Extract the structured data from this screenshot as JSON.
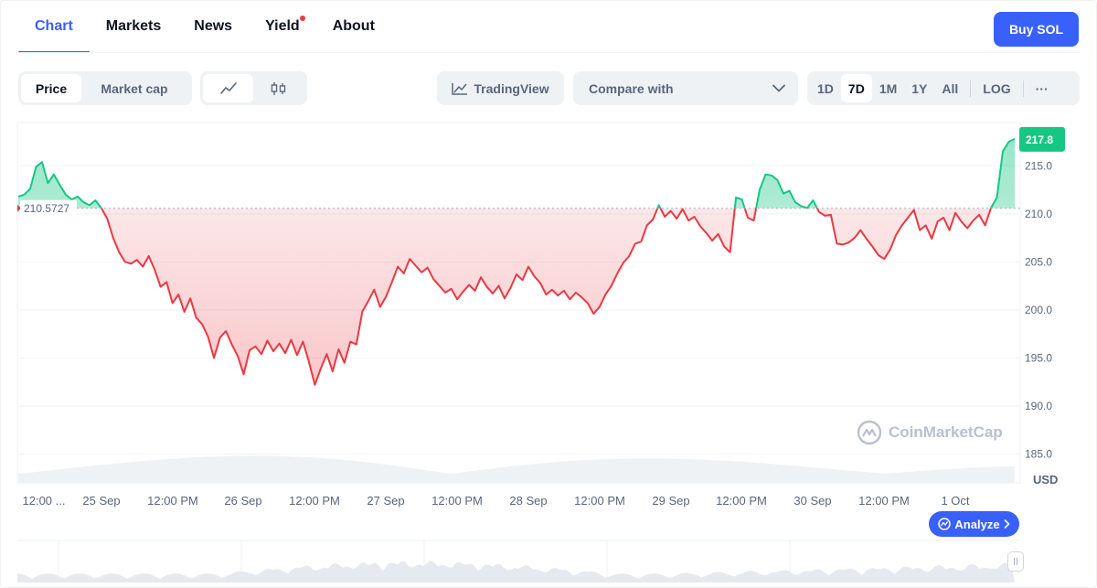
{
  "nav": {
    "tabs": [
      {
        "label": "Chart",
        "active": true
      },
      {
        "label": "Markets"
      },
      {
        "label": "News"
      },
      {
        "label": "Yield",
        "dot": true
      },
      {
        "label": "About"
      }
    ],
    "buy_label": "Buy SOL"
  },
  "toolbar": {
    "price_label": "Price",
    "market_cap_label": "Market cap",
    "line_icon": "line-chart-icon",
    "candle_icon": "candlestick-icon",
    "tradingview_label": "TradingView",
    "compare_label": "Compare with",
    "ranges": [
      "1D",
      "7D",
      "1M",
      "1Y",
      "All"
    ],
    "active_range": "7D",
    "log_label": "LOG",
    "more_label": "···"
  },
  "colors": {
    "accent": "#3861fb",
    "up": "#16c784",
    "down": "#ea3943"
  },
  "chart_data": {
    "type": "area",
    "baseline": 210.5727,
    "baseline_label": "210.5727",
    "current_label": "217.8",
    "current": 217.8,
    "ylim": [
      182.0,
      219.5
    ],
    "yticks": [
      185.0,
      190.0,
      195.0,
      200.0,
      205.0,
      210.0,
      215.0
    ],
    "ytick_labels": [
      "185.0",
      "190.0",
      "195.0",
      "200.0",
      "205.0",
      "210.0",
      "215.0"
    ],
    "y_unit": "USD",
    "x_labels": [
      "12:00 ...",
      "25 Sep",
      "12:00 PM",
      "26 Sep",
      "12:00 PM",
      "27 Sep",
      "12:00 PM",
      "28 Sep",
      "12:00 PM",
      "29 Sep",
      "12:00 PM",
      "30 Sep",
      "12:00 PM",
      "1 Oct"
    ],
    "xlim": [
      0,
      168
    ],
    "series": [
      {
        "values": [
          [
            0,
            211.8
          ],
          [
            1,
            212.0
          ],
          [
            2,
            212.6
          ],
          [
            3,
            214.9
          ],
          [
            4,
            215.4
          ],
          [
            5,
            213.2
          ],
          [
            6,
            214.1
          ],
          [
            7,
            213.0
          ],
          [
            8,
            212.0
          ],
          [
            9,
            211.5
          ],
          [
            10,
            211.8
          ],
          [
            11,
            211.2
          ],
          [
            12,
            210.9
          ],
          [
            13,
            211.4
          ],
          [
            14,
            210.6
          ],
          [
            15,
            209.5
          ],
          [
            16,
            207.5
          ],
          [
            17,
            206.0
          ],
          [
            18,
            205.0
          ],
          [
            19,
            204.8
          ],
          [
            20,
            205.2
          ],
          [
            21,
            204.5
          ],
          [
            22,
            205.6
          ],
          [
            23,
            204.2
          ],
          [
            24,
            202.4
          ],
          [
            25,
            202.9
          ],
          [
            26,
            200.7
          ],
          [
            27,
            201.6
          ],
          [
            28,
            199.8
          ],
          [
            29,
            201.2
          ],
          [
            30,
            199.2
          ],
          [
            31,
            198.5
          ],
          [
            32,
            197.2
          ],
          [
            33,
            195.0
          ],
          [
            34,
            197.1
          ],
          [
            35,
            197.8
          ],
          [
            36,
            196.4
          ],
          [
            37,
            195.2
          ],
          [
            38,
            193.3
          ],
          [
            39,
            195.8
          ],
          [
            40,
            196.2
          ],
          [
            41,
            195.4
          ],
          [
            42,
            196.8
          ],
          [
            43,
            195.7
          ],
          [
            44,
            196.5
          ],
          [
            45,
            195.5
          ],
          [
            46,
            196.9
          ],
          [
            47,
            195.3
          ],
          [
            48,
            196.7
          ],
          [
            49,
            194.6
          ],
          [
            50,
            192.2
          ],
          [
            51,
            193.9
          ],
          [
            52,
            195.4
          ],
          [
            53,
            193.6
          ],
          [
            54,
            195.9
          ],
          [
            55,
            194.5
          ],
          [
            56,
            196.7
          ],
          [
            57,
            196.4
          ],
          [
            58,
            199.8
          ],
          [
            59,
            200.9
          ],
          [
            60,
            202.1
          ],
          [
            61,
            200.3
          ],
          [
            62,
            201.4
          ],
          [
            63,
            202.9
          ],
          [
            64,
            204.5
          ],
          [
            65,
            203.8
          ],
          [
            66,
            205.3
          ],
          [
            67,
            204.6
          ],
          [
            68,
            203.9
          ],
          [
            69,
            204.4
          ],
          [
            70,
            203.2
          ],
          [
            71,
            202.5
          ],
          [
            72,
            201.8
          ],
          [
            73,
            202.2
          ],
          [
            74,
            201.1
          ],
          [
            75,
            201.9
          ],
          [
            76,
            202.6
          ],
          [
            77,
            202.0
          ],
          [
            78,
            203.4
          ],
          [
            79,
            202.4
          ],
          [
            80,
            201.7
          ],
          [
            81,
            202.5
          ],
          [
            82,
            201.2
          ],
          [
            83,
            202.3
          ],
          [
            84,
            203.7
          ],
          [
            85,
            203.1
          ],
          [
            86,
            204.5
          ],
          [
            87,
            203.5
          ],
          [
            88,
            202.8
          ],
          [
            89,
            201.6
          ],
          [
            90,
            202.1
          ],
          [
            91,
            201.5
          ],
          [
            92,
            202.0
          ],
          [
            93,
            201.1
          ],
          [
            94,
            201.8
          ],
          [
            95,
            201.3
          ],
          [
            96,
            200.7
          ],
          [
            97,
            199.6
          ],
          [
            98,
            200.3
          ],
          [
            99,
            201.6
          ],
          [
            100,
            202.5
          ],
          [
            101,
            203.8
          ],
          [
            102,
            204.9
          ],
          [
            103,
            205.6
          ],
          [
            104,
            206.9
          ],
          [
            105,
            207.1
          ],
          [
            106,
            208.8
          ],
          [
            107,
            209.4
          ],
          [
            108,
            210.9
          ],
          [
            109,
            209.7
          ],
          [
            110,
            210.3
          ],
          [
            111,
            209.5
          ],
          [
            112,
            210.5
          ],
          [
            113,
            209.3
          ],
          [
            114,
            209.7
          ],
          [
            115,
            208.7
          ],
          [
            116,
            208.0
          ],
          [
            117,
            207.2
          ],
          [
            118,
            207.9
          ],
          [
            119,
            206.6
          ],
          [
            120,
            206.0
          ],
          [
            121,
            211.7
          ],
          [
            122,
            211.5
          ],
          [
            123,
            209.6
          ],
          [
            124,
            209.3
          ],
          [
            125,
            212.5
          ],
          [
            126,
            214.1
          ],
          [
            127,
            214.0
          ],
          [
            128,
            213.5
          ],
          [
            129,
            212.1
          ],
          [
            130,
            212.4
          ],
          [
            131,
            211.2
          ],
          [
            132,
            210.8
          ],
          [
            133,
            210.6
          ],
          [
            134,
            211.4
          ],
          [
            135,
            210.2
          ],
          [
            136,
            209.8
          ],
          [
            137,
            209.9
          ],
          [
            138,
            206.9
          ],
          [
            139,
            206.8
          ],
          [
            140,
            207.0
          ],
          [
            141,
            207.5
          ],
          [
            142,
            208.3
          ],
          [
            143,
            207.4
          ],
          [
            144,
            206.6
          ],
          [
            145,
            205.7
          ],
          [
            146,
            205.3
          ],
          [
            147,
            206.3
          ],
          [
            148,
            207.8
          ],
          [
            149,
            208.8
          ],
          [
            150,
            209.6
          ],
          [
            151,
            210.4
          ],
          [
            152,
            208.3
          ],
          [
            153,
            208.8
          ],
          [
            154,
            207.4
          ],
          [
            155,
            209.2
          ],
          [
            156,
            209.6
          ],
          [
            157,
            208.3
          ],
          [
            158,
            210.1
          ],
          [
            159,
            209.2
          ],
          [
            160,
            208.5
          ],
          [
            161,
            209.3
          ],
          [
            162,
            209.9
          ],
          [
            163,
            208.8
          ],
          [
            164,
            210.6
          ],
          [
            165,
            211.7
          ],
          [
            166,
            216.5
          ],
          [
            167,
            217.5
          ],
          [
            168,
            217.8
          ]
        ]
      }
    ],
    "legend": "none",
    "grid": true,
    "watermark_label": "CoinMarketCap",
    "analyze_label": "Analyze"
  }
}
